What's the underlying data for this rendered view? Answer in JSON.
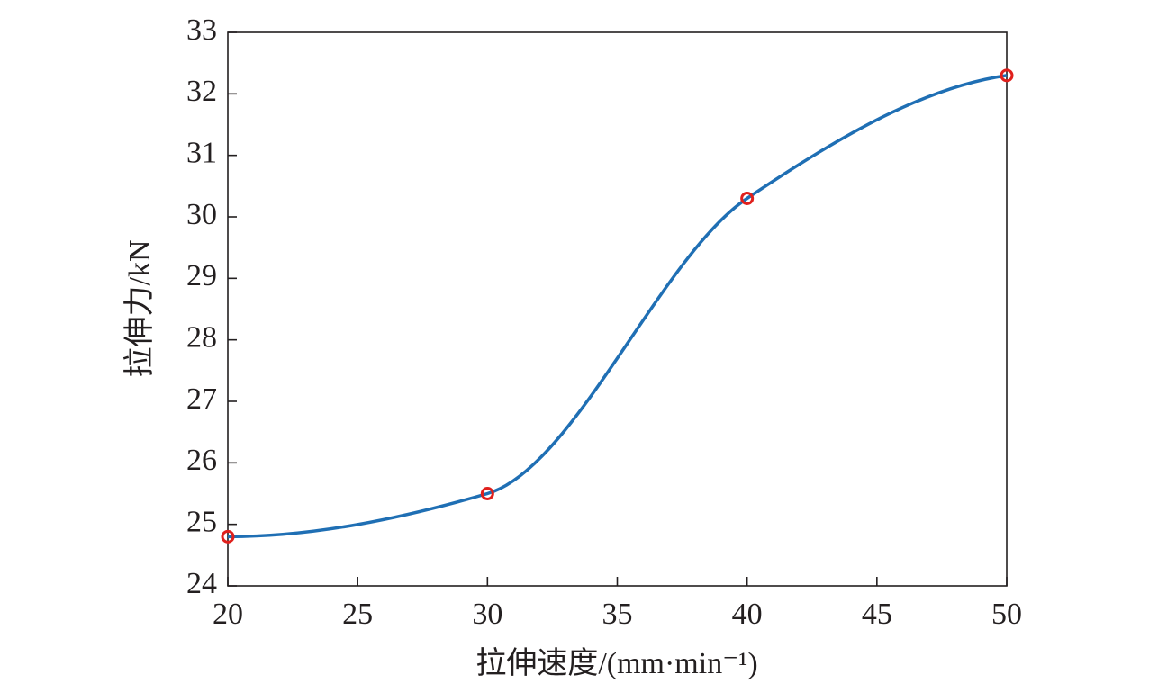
{
  "chart_data": {
    "type": "line",
    "x_label": "拉伸速度/(mm·min⁻¹)",
    "y_label": "拉伸力/kN",
    "x": [
      20,
      30,
      40,
      50
    ],
    "values": [
      24.8,
      25.5,
      30.3,
      32.3
    ],
    "line_color": "#1f6fb4",
    "marker_color": "#e0201c",
    "xlim": [
      20,
      50
    ],
    "xticks": [
      20,
      25,
      30,
      35,
      40,
      45,
      50
    ],
    "ylim": [
      24,
      33
    ],
    "yticks": [
      24,
      25,
      26,
      27,
      28,
      29,
      30,
      31,
      32,
      33
    ]
  }
}
